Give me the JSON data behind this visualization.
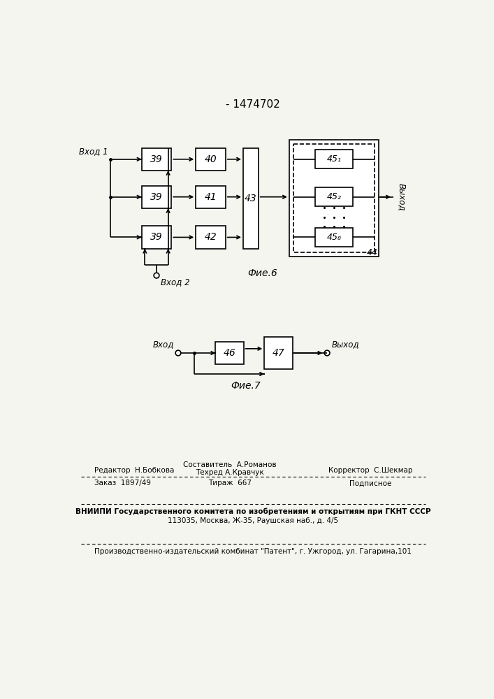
{
  "title": "- 1474702",
  "bg_color": "#f5f5f0",
  "fig6_label": "Фие.6",
  "fig7_label": "Фие.7",
  "footer": {
    "line1_left": "Редактор  Н.Бобкова",
    "line1_center1": "Составитель  А.Романов",
    "line1_center2": "Техред А.Кравчук",
    "line1_right": "Корректор  С.Шекмар",
    "line2_left": "Заказ  1897/49",
    "line2_center": "Тираж  667",
    "line2_right": "Подписное",
    "line3": "ВНИИПИ Государственного комитета по изобретениям и открытиям при ГКНТ СССР",
    "line4": "113035, Москва, Ж-35, Раушская наб., д. 4/5",
    "line5": "Производственно-издательский комбинат \"Патент\", г. Ужгород, ул. Гагарина,101"
  }
}
